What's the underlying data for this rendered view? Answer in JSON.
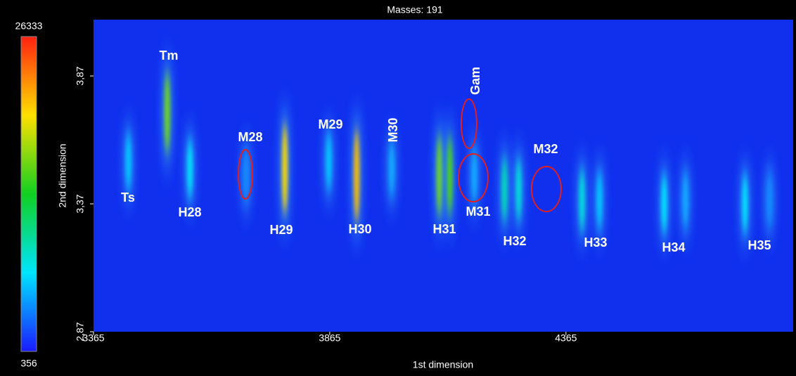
{
  "chart_data": {
    "type": "heatmap",
    "title": "Masses: 191",
    "x_label": "1st dimension",
    "y_label": "2nd dimension",
    "xlim": [
      3365,
      4846
    ],
    "ylim": [
      2.87,
      4.09
    ],
    "xticks": [
      3365,
      3865,
      4365
    ],
    "yticks": [
      {
        "value": 2.87,
        "label": "2,87"
      },
      {
        "value": 3.37,
        "label": "3,37"
      },
      {
        "value": 3.87,
        "label": "3,87"
      }
    ],
    "colorbar": {
      "range": [
        356,
        26333
      ],
      "colors": [
        "#1a1aff",
        "#00e5ff",
        "#10d020",
        "#ffe000",
        "#ff2010"
      ]
    },
    "background": "#1030ee",
    "peaks": {
      "x": [
        3439,
        3521,
        3569,
        3688,
        3770,
        3863,
        3922,
        3996,
        4097,
        4119,
        4171,
        4235,
        4265,
        4399,
        4436,
        4573,
        4618,
        4744,
        4796
      ],
      "y": [
        3.535,
        3.727,
        3.507,
        3.48,
        3.507,
        3.535,
        3.48,
        3.507,
        3.48,
        3.48,
        3.48,
        3.425,
        3.425,
        3.384,
        3.384,
        3.37,
        3.384,
        3.37,
        3.384
      ],
      "values": [
        6000,
        16000,
        7000,
        4000,
        20000,
        6000,
        21000,
        5000,
        16000,
        15000,
        5000,
        9000,
        8000,
        8000,
        6000,
        7000,
        5000,
        7000,
        4000
      ]
    },
    "annotations": [
      "Tm",
      "Ts",
      "H28",
      "M28",
      "H29",
      "M29",
      "H30",
      "M30",
      "H31",
      "Gam",
      "M31",
      "H32",
      "M32",
      "H33",
      "H34",
      "H35"
    ]
  }
}
